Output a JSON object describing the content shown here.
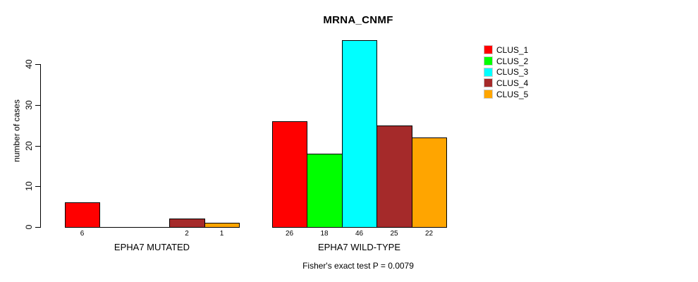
{
  "chart_data": {
    "type": "bar",
    "title": "MRNA_CNMF",
    "ylabel": "number of cases",
    "xlabel": "",
    "yticks": [
      0,
      10,
      20,
      30,
      40
    ],
    "ylim": [
      0,
      46
    ],
    "grid": false,
    "legend_position": "right",
    "series": [
      {
        "name": "CLUS_1",
        "color": "#FF0000"
      },
      {
        "name": "CLUS_2",
        "color": "#00FF00"
      },
      {
        "name": "CLUS_3",
        "color": "#00FFFF"
      },
      {
        "name": "CLUS_4",
        "color": "#A52A2A"
      },
      {
        "name": "CLUS_5",
        "color": "#FFA500"
      }
    ],
    "groups": [
      {
        "label": "EPHA7 MUTATED",
        "values": [
          6,
          0,
          0,
          2,
          1
        ]
      },
      {
        "label": "EPHA7 WILD-TYPE",
        "values": [
          26,
          18,
          46,
          25,
          22
        ]
      }
    ],
    "annotation": "Fisher's exact test P = 0.0079",
    "bar_outline_color": "#000000"
  }
}
